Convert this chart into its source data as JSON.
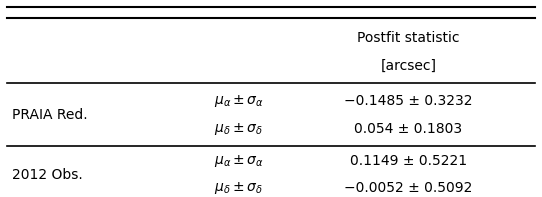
{
  "col_header_line1": "Postfit statistic",
  "col_header_line2": "[arcsec]",
  "rows": [
    {
      "group_label": "PRAIA Red.",
      "sub_label_ra": "$\\mu_\\alpha \\pm \\sigma_\\alpha$",
      "sub_label_dec": "$\\mu_\\delta \\pm \\sigma_\\delta$",
      "value_ra": "−0.1485 ± 0.3232",
      "value_dec": "0.054 ± 0.1803"
    },
    {
      "group_label": "2012 Obs.",
      "sub_label_ra": "$\\mu_\\alpha \\pm \\sigma_\\alpha$",
      "sub_label_dec": "$\\mu_\\delta \\pm \\sigma_\\delta$",
      "value_ra": "0.1149 ± 0.5221",
      "value_dec": "−0.0052 ± 0.5092"
    }
  ],
  "bg_color": "#ffffff",
  "text_color": "#000000",
  "line_color": "#000000",
  "font_size": 10
}
